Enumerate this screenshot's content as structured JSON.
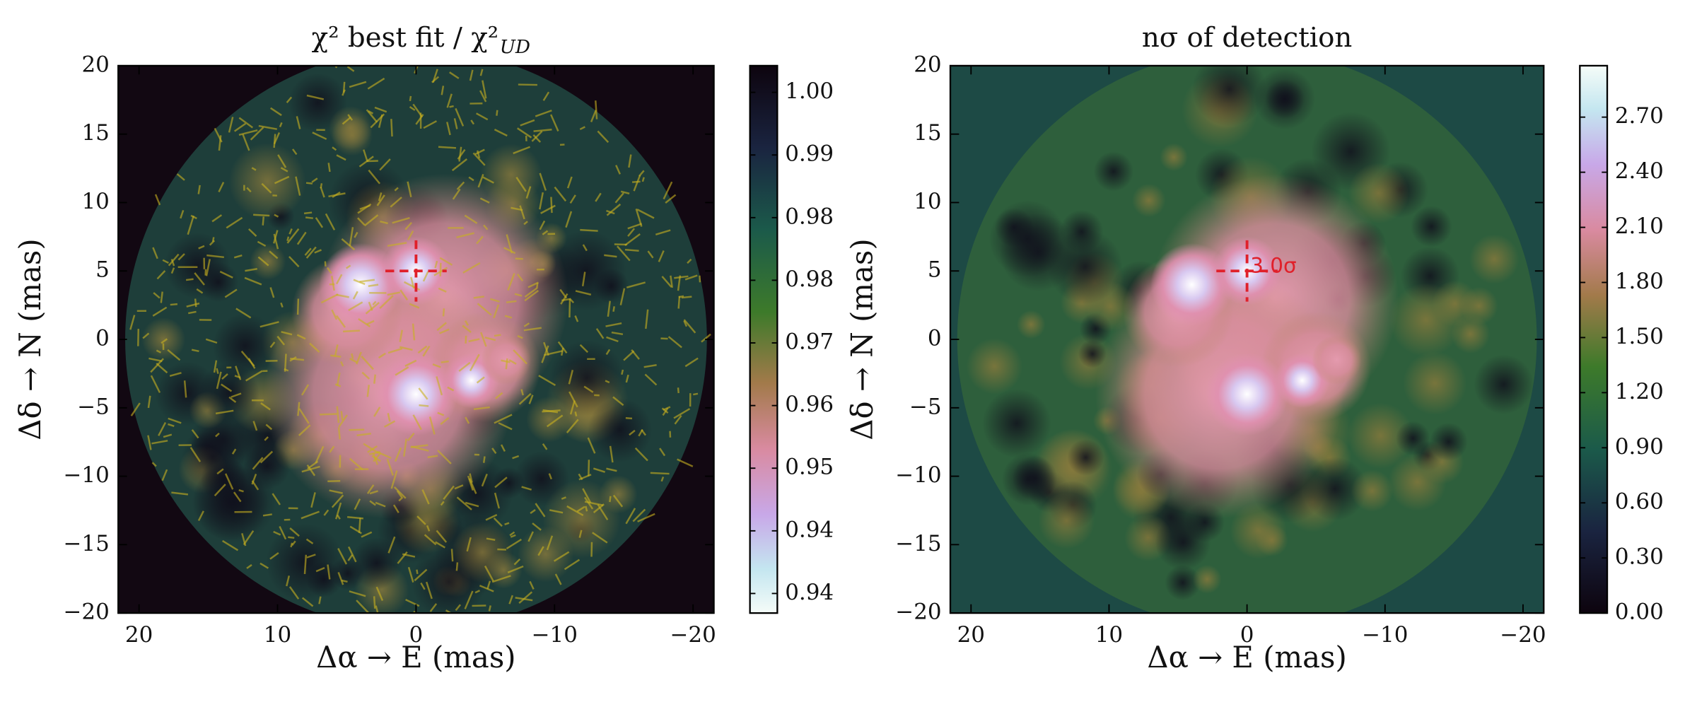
{
  "chart_data": [
    {
      "type": "heatmap",
      "title": "χ²  best fit / χ²",
      "title_subscript": "UD",
      "xlabel": "Δα  → E (mas)",
      "ylabel": "Δδ  → N (mas)",
      "xlim": [
        21.5,
        -21.5
      ],
      "ylim": [
        -20,
        20
      ],
      "xticks": [
        20,
        10,
        0,
        {
          "value": -10,
          "label": "−10"
        },
        {
          "value": -20,
          "label": "−20"
        }
      ],
      "yticks": [
        {
          "value": -20,
          "label": "−20"
        },
        {
          "value": -15,
          "label": "−15"
        },
        {
          "value": -10,
          "label": "−10"
        },
        {
          "value": -5,
          "label": "−5"
        },
        0,
        5,
        10,
        15,
        20
      ],
      "colorbar": {
        "clim": [
          0.9335,
          1.0034
        ],
        "ticks": [
          {
            "value": 1.0,
            "label": "1.00"
          },
          {
            "value": 0.992,
            "label": "0.99"
          },
          {
            "value": 0.984,
            "label": "0.98"
          },
          {
            "value": 0.976,
            "label": "0.98"
          },
          {
            "value": 0.968,
            "label": "0.97"
          },
          {
            "value": 0.96,
            "label": "0.96"
          },
          {
            "value": 0.952,
            "label": "0.95"
          },
          {
            "value": 0.944,
            "label": "0.94"
          },
          {
            "value": 0.936,
            "label": "0.94"
          }
        ]
      }
    },
    {
      "type": "heatmap",
      "title": "nσ of detection",
      "annotation": "3.0σ",
      "xlabel": "Δα  → E (mas)",
      "ylabel": "Δδ  → N (mas)",
      "xlim": [
        21.5,
        -21.5
      ],
      "ylim": [
        -20,
        20
      ],
      "xticks": [
        20,
        10,
        0,
        {
          "value": -10,
          "label": "−10"
        },
        {
          "value": -20,
          "label": "−20"
        }
      ],
      "yticks": [
        {
          "value": -20,
          "label": "−20"
        },
        {
          "value": -15,
          "label": "−15"
        },
        {
          "value": -10,
          "label": "−10"
        },
        {
          "value": -5,
          "label": "−5"
        },
        0,
        5,
        10,
        15,
        20
      ],
      "colorbar": {
        "clim": [
          0,
          2.98
        ],
        "ticks": [
          {
            "value": 0,
            "label": "0.00"
          },
          {
            "value": 0.3,
            "label": "0.30"
          },
          {
            "value": 0.6,
            "label": "0.60"
          },
          {
            "value": 0.9,
            "label": "0.90"
          },
          {
            "value": 1.2,
            "label": "1.20"
          },
          {
            "value": 1.5,
            "label": "1.50"
          },
          {
            "value": 1.8,
            "label": "1.80"
          },
          {
            "value": 2.1,
            "label": "2.10"
          },
          {
            "value": 2.4,
            "label": "2.40"
          },
          {
            "value": 2.7,
            "label": "2.70"
          }
        ]
      }
    }
  ]
}
